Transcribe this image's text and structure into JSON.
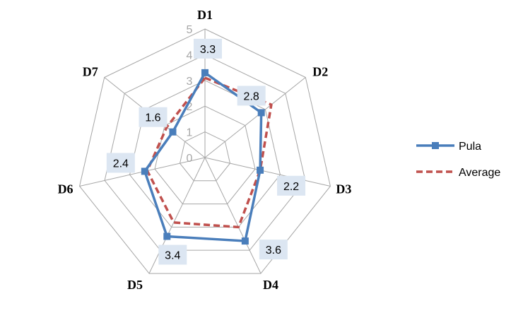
{
  "chart_data": {
    "type": "radar",
    "categories": [
      "D1",
      "D2",
      "D3",
      "D4",
      "D5",
      "D6",
      "D7"
    ],
    "series": [
      {
        "name": "Pula",
        "values": [
          3.3,
          2.8,
          2.2,
          3.6,
          3.4,
          2.4,
          1.6
        ],
        "color": "#4a7ebb",
        "line_style": "solid",
        "marker": "square",
        "data_labels": true
      },
      {
        "name": "Average",
        "values": [
          3.1,
          3.3,
          2.2,
          3.0,
          2.8,
          2.3,
          1.9
        ],
        "color": "#c0504d",
        "line_style": "dashed",
        "marker": "none",
        "data_labels": false
      }
    ],
    "ring_ticks": [
      "0",
      "1",
      "2",
      "3",
      "4",
      "5"
    ],
    "rlim": [
      0,
      5
    ],
    "grid": true,
    "legend_position": "right",
    "title": "",
    "xlabel": "",
    "ylabel": ""
  },
  "colors": {
    "grid": "#a6a6a6",
    "label_background": "#dce6f2"
  }
}
